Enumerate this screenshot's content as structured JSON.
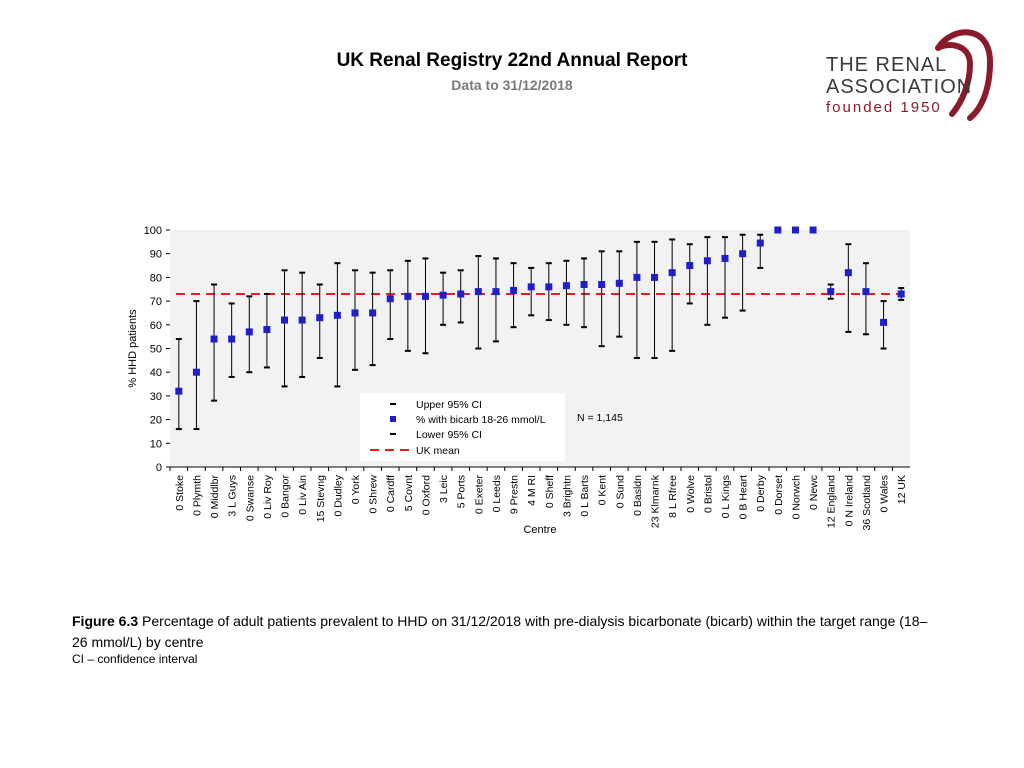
{
  "header": {
    "title": "UK Renal Registry 22nd Annual Report",
    "subtitle": "Data to 31/12/2018"
  },
  "logo": {
    "line1": "THE RENAL",
    "line2": "ASSOCIATION",
    "line3": "founded 1950"
  },
  "caption": {
    "label": "Figure 6.3",
    "text": " Percentage of adult patients prevalent to HHD on 31/12/2018 with pre-dialysis bicarbonate (bicarb) within the target range (18–26 mmol/L) by centre",
    "note": "CI – confidence interval"
  },
  "colors": {
    "point": "#1f1fc8",
    "mean": "#e02020",
    "plot_bg": "#f2f2f2",
    "ci": "#000000"
  },
  "chart_data": {
    "type": "scatter",
    "xlabel": "Centre",
    "ylabel": "% HHD patients",
    "ylim": [
      0,
      100
    ],
    "yticks": [
      0,
      10,
      20,
      30,
      40,
      50,
      60,
      70,
      80,
      90,
      100
    ],
    "uk_mean": 73,
    "annotation": "N = 1,145",
    "legend": [
      "Upper 95% CI",
      "% with bicarb 18-26 mmol/L",
      "Lower 95% CI",
      "UK mean"
    ],
    "categories": [
      "0 Stoke",
      "0 Plymth",
      "0 Middlbr",
      "3 L Guys",
      "0 Swanse",
      "0 Liv Roy",
      "0 Bangor",
      "0 Liv Ain",
      "15 Stevng",
      "0 Dudley",
      "0 York",
      "0 Shrew",
      "0 Cardff",
      "5 Covnt",
      "0 Oxford",
      "3 Leic",
      "5 Ports",
      "0 Exeter",
      "0 Leeds",
      "9 Prestn",
      "4 M RI",
      "0 Sheff",
      "3 Brightn",
      "0 L Barts",
      "0 Kent",
      "0 Sund",
      "0 Basldn",
      "23 Klmarnk",
      "8 L Rfree",
      "0 Wolve",
      "0 Bristol",
      "0 L Kings",
      "0 B Heart",
      "0 Derby",
      "0 Dorset",
      "0 Norwch",
      "0 Newc",
      "12 England",
      "0 N Ireland",
      "36 Scotland",
      "0 Wales",
      "12 UK"
    ],
    "values": [
      32,
      40,
      54,
      54,
      57,
      58,
      62,
      62,
      63,
      64,
      65,
      65,
      71,
      72,
      72,
      72.5,
      73,
      74,
      74,
      74.5,
      76,
      76,
      76.5,
      77,
      77,
      77.5,
      80,
      80,
      82,
      85,
      87,
      88,
      90,
      94.5,
      100,
      100,
      100,
      74,
      82,
      74,
      61,
      73
    ],
    "upper": [
      54,
      70,
      77,
      69,
      72,
      73,
      83,
      82,
      77,
      86,
      83,
      82,
      83,
      87,
      88,
      82,
      83,
      89,
      88,
      86,
      84,
      86,
      87,
      88,
      91,
      91,
      95,
      95,
      96,
      94,
      97,
      97,
      98,
      98,
      100,
      100,
      100,
      77,
      94,
      86,
      70,
      75.5
    ],
    "lower": [
      16,
      16,
      28,
      38,
      40,
      42,
      34,
      38,
      46,
      34,
      41,
      43,
      54,
      49,
      48,
      60,
      61,
      50,
      53,
      59,
      64,
      62,
      60,
      59,
      51,
      55,
      46,
      46,
      49,
      69,
      60,
      63,
      66,
      84,
      100,
      100,
      100,
      71,
      57,
      56,
      50,
      70.5
    ]
  }
}
